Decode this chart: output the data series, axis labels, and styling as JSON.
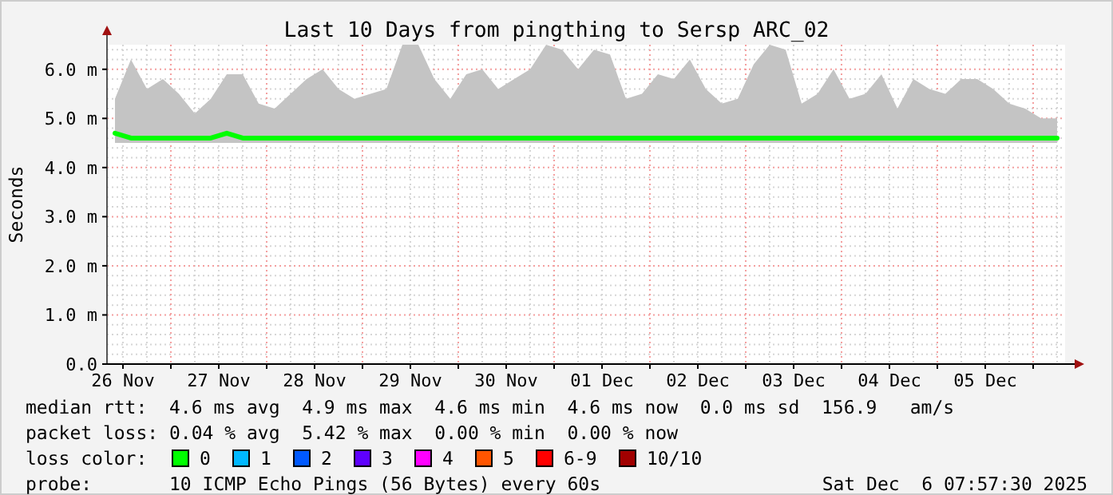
{
  "chart_data": {
    "type": "line",
    "title": "Last 10 Days from pingthing to Sersp ARC_02",
    "ylabel": "Seconds",
    "legend_title": "loss color:",
    "legend": "bottom",
    "grid": true,
    "line_style": "solid",
    "marker": "none",
    "xlim": [
      "2025-11-26T08:00",
      "2025-12-06T08:00"
    ],
    "xticks": [
      {
        "value": "2025-11-26T12:00",
        "label": "26 Nov"
      },
      {
        "value": "2025-11-27T00:00",
        "label": null
      },
      {
        "value": "2025-11-27T12:00",
        "label": "27 Nov"
      },
      {
        "value": "2025-11-28T00:00",
        "label": null
      },
      {
        "value": "2025-11-28T12:00",
        "label": "28 Nov"
      },
      {
        "value": "2025-11-29T00:00",
        "label": null
      },
      {
        "value": "2025-11-29T12:00",
        "label": "29 Nov"
      },
      {
        "value": "2025-11-30T00:00",
        "label": null
      },
      {
        "value": "2025-11-30T12:00",
        "label": "30 Nov"
      },
      {
        "value": "2025-12-01T00:00",
        "label": null
      },
      {
        "value": "2025-12-01T12:00",
        "label": "01 Dec"
      },
      {
        "value": "2025-12-02T00:00",
        "label": null
      },
      {
        "value": "2025-12-02T12:00",
        "label": "02 Dec"
      },
      {
        "value": "2025-12-03T00:00",
        "label": null
      },
      {
        "value": "2025-12-03T12:00",
        "label": "03 Dec"
      },
      {
        "value": "2025-12-04T00:00",
        "label": null
      },
      {
        "value": "2025-12-04T12:00",
        "label": "04 Dec"
      },
      {
        "value": "2025-12-05T00:00",
        "label": null
      },
      {
        "value": "2025-12-05T12:00",
        "label": "05 Dec"
      },
      {
        "value": "2025-12-06T00:00",
        "label": null
      }
    ],
    "ylim": [
      0,
      6.5
    ],
    "yticks": [
      {
        "value": 0,
        "label": "0.0"
      },
      {
        "value": 1,
        "label": "1.0 m"
      },
      {
        "value": 2,
        "label": "2.0 m"
      },
      {
        "value": 3,
        "label": "3.0 m"
      },
      {
        "value": 4,
        "label": "4.0 m"
      },
      {
        "value": 5,
        "label": "5.0 m"
      },
      {
        "value": 6,
        "label": "6.0 m"
      }
    ],
    "x": [
      "2025-11-26T10:00",
      "2025-11-26T14:00",
      "2025-11-26T18:00",
      "2025-11-26T22:00",
      "2025-11-27T02:00",
      "2025-11-27T06:00",
      "2025-11-27T10:00",
      "2025-11-27T14:00",
      "2025-11-27T18:00",
      "2025-11-27T22:00",
      "2025-11-28T02:00",
      "2025-11-28T06:00",
      "2025-11-28T10:00",
      "2025-11-28T14:00",
      "2025-11-28T18:00",
      "2025-11-28T22:00",
      "2025-11-29T02:00",
      "2025-11-29T06:00",
      "2025-11-29T10:00",
      "2025-11-29T14:00",
      "2025-11-29T18:00",
      "2025-11-29T22:00",
      "2025-11-30T02:00",
      "2025-11-30T06:00",
      "2025-11-30T10:00",
      "2025-11-30T14:00",
      "2025-11-30T18:00",
      "2025-11-30T22:00",
      "2025-12-01T02:00",
      "2025-12-01T06:00",
      "2025-12-01T10:00",
      "2025-12-01T14:00",
      "2025-12-01T18:00",
      "2025-12-01T22:00",
      "2025-12-02T02:00",
      "2025-12-02T06:00",
      "2025-12-02T10:00",
      "2025-12-02T14:00",
      "2025-12-02T18:00",
      "2025-12-02T22:00",
      "2025-12-03T02:00",
      "2025-12-03T06:00",
      "2025-12-03T10:00",
      "2025-12-03T14:00",
      "2025-12-03T18:00",
      "2025-12-03T22:00",
      "2025-12-04T02:00",
      "2025-12-04T06:00",
      "2025-12-04T10:00",
      "2025-12-04T14:00",
      "2025-12-04T18:00",
      "2025-12-04T22:00",
      "2025-12-05T02:00",
      "2025-12-05T06:00",
      "2025-12-05T10:00",
      "2025-12-05T14:00",
      "2025-12-05T18:00",
      "2025-12-05T22:00",
      "2025-12-06T02:00",
      "2025-12-06T06:00"
    ],
    "series": [
      {
        "name": "0",
        "color": "#00ff00",
        "values": [
          4.7,
          4.6,
          4.6,
          4.6,
          4.6,
          4.6,
          4.6,
          4.7,
          4.6,
          4.6,
          4.6,
          4.6,
          4.6,
          4.6,
          4.6,
          4.6,
          4.6,
          4.6,
          4.6,
          4.6,
          4.6,
          4.6,
          4.6,
          4.6,
          4.6,
          4.6,
          4.6,
          4.6,
          4.6,
          4.6,
          4.6,
          4.6,
          4.6,
          4.6,
          4.6,
          4.6,
          4.6,
          4.6,
          4.6,
          4.6,
          4.6,
          4.6,
          4.6,
          4.6,
          4.6,
          4.6,
          4.6,
          4.6,
          4.6,
          4.6,
          4.6,
          4.6,
          4.6,
          4.6,
          4.6,
          4.6,
          4.6,
          4.6,
          4.6,
          4.6
        ],
        "lower": [
          4.5,
          4.5,
          4.5,
          4.5,
          4.5,
          4.5,
          4.5,
          4.5,
          4.5,
          4.5,
          4.5,
          4.5,
          4.5,
          4.5,
          4.5,
          4.5,
          4.5,
          4.5,
          4.5,
          4.5,
          4.5,
          4.5,
          4.5,
          4.5,
          4.5,
          4.5,
          4.5,
          4.5,
          4.5,
          4.5,
          4.5,
          4.5,
          4.5,
          4.5,
          4.5,
          4.5,
          4.5,
          4.5,
          4.5,
          4.5,
          4.5,
          4.5,
          4.5,
          4.5,
          4.5,
          4.5,
          4.5,
          4.5,
          4.5,
          4.5,
          4.5,
          4.5,
          4.5,
          4.5,
          4.5,
          4.5,
          4.5,
          4.5,
          4.5,
          4.5
        ],
        "upper": [
          5.4,
          6.2,
          5.6,
          5.8,
          5.5,
          5.1,
          5.4,
          5.9,
          5.9,
          5.3,
          5.2,
          5.5,
          5.8,
          6.0,
          5.6,
          5.4,
          5.5,
          5.6,
          6.5,
          6.5,
          5.8,
          5.4,
          5.9,
          6.0,
          5.6,
          5.8,
          6.0,
          6.5,
          6.4,
          6.0,
          6.4,
          6.3,
          5.4,
          5.5,
          5.9,
          5.8,
          6.2,
          5.6,
          5.3,
          5.4,
          6.1,
          6.5,
          6.4,
          5.3,
          5.5,
          6.0,
          5.4,
          5.5,
          5.9,
          5.2,
          5.8,
          5.6,
          5.5,
          5.8,
          5.8,
          5.6,
          5.3,
          5.2,
          5.0,
          5.0
        ]
      },
      {
        "name": "1",
        "color": "#00b8ff",
        "values": [
          null,
          null,
          null,
          null,
          null,
          null,
          null,
          null,
          null,
          null,
          null,
          null,
          null,
          null,
          null,
          null,
          null,
          null,
          null,
          null,
          null,
          null,
          null,
          null,
          null,
          null,
          null,
          null,
          null,
          null,
          null,
          null,
          null,
          null,
          null,
          null,
          null,
          null,
          null,
          null,
          null,
          null,
          null,
          null,
          null,
          null,
          null,
          null,
          null,
          null,
          null,
          null,
          null,
          null,
          null,
          null,
          null,
          null,
          null,
          null
        ]
      },
      {
        "name": "2",
        "color": "#0059ff",
        "values": [
          null,
          null,
          null,
          null,
          null,
          null,
          null,
          null,
          null,
          null,
          null,
          null,
          null,
          null,
          null,
          null,
          null,
          null,
          null,
          null,
          null,
          null,
          null,
          null,
          null,
          null,
          null,
          null,
          null,
          null,
          null,
          null,
          null,
          null,
          null,
          null,
          null,
          null,
          null,
          null,
          null,
          null,
          null,
          null,
          null,
          null,
          null,
          null,
          null,
          null,
          null,
          null,
          null,
          null,
          null,
          null,
          null,
          null,
          null,
          null
        ]
      },
      {
        "name": "3",
        "color": "#5e00ff",
        "values": [
          null,
          null,
          null,
          null,
          null,
          null,
          null,
          null,
          null,
          null,
          null,
          null,
          null,
          null,
          null,
          null,
          null,
          null,
          null,
          null,
          null,
          null,
          null,
          null,
          null,
          null,
          null,
          null,
          null,
          null,
          null,
          null,
          null,
          null,
          null,
          null,
          null,
          null,
          null,
          null,
          null,
          null,
          null,
          null,
          null,
          null,
          null,
          null,
          null,
          null,
          null,
          null,
          null,
          null,
          null,
          null,
          null,
          null,
          null,
          null
        ]
      },
      {
        "name": "4",
        "color": "#ff00ff",
        "values": [
          null,
          null,
          null,
          null,
          null,
          null,
          null,
          null,
          null,
          null,
          null,
          null,
          null,
          null,
          null,
          null,
          null,
          null,
          null,
          null,
          null,
          null,
          null,
          null,
          null,
          null,
          null,
          null,
          null,
          null,
          null,
          null,
          null,
          null,
          null,
          null,
          null,
          null,
          null,
          null,
          null,
          null,
          null,
          null,
          null,
          null,
          null,
          null,
          null,
          null,
          null,
          null,
          null,
          null,
          null,
          null,
          null,
          null,
          null,
          null
        ]
      },
      {
        "name": "5",
        "color": "#ff5500",
        "values": [
          null,
          null,
          null,
          null,
          null,
          null,
          null,
          null,
          null,
          null,
          null,
          null,
          null,
          null,
          null,
          null,
          null,
          null,
          null,
          null,
          null,
          null,
          null,
          null,
          null,
          null,
          null,
          null,
          null,
          null,
          null,
          null,
          null,
          null,
          null,
          null,
          null,
          null,
          null,
          null,
          null,
          null,
          null,
          null,
          null,
          null,
          null,
          null,
          null,
          null,
          null,
          null,
          null,
          null,
          null,
          null,
          null,
          null,
          null,
          null
        ]
      },
      {
        "name": "6-9",
        "color": "#ff0000",
        "values": [
          null,
          null,
          null,
          null,
          null,
          null,
          null,
          null,
          null,
          null,
          null,
          null,
          null,
          null,
          null,
          null,
          null,
          null,
          null,
          null,
          null,
          null,
          null,
          null,
          null,
          null,
          null,
          null,
          null,
          null,
          null,
          null,
          null,
          null,
          null,
          null,
          null,
          null,
          null,
          null,
          null,
          null,
          null,
          null,
          null,
          null,
          null,
          null,
          null,
          null,
          null,
          null,
          null,
          null,
          null,
          null,
          null,
          null,
          null,
          null
        ]
      },
      {
        "name": "10/10",
        "color": "#a10000",
        "values": [
          null,
          null,
          null,
          null,
          null,
          null,
          null,
          null,
          null,
          null,
          null,
          null,
          null,
          null,
          null,
          null,
          null,
          null,
          null,
          null,
          null,
          null,
          null,
          null,
          null,
          null,
          null,
          null,
          null,
          null,
          null,
          null,
          null,
          null,
          null,
          null,
          null,
          null,
          null,
          null,
          null,
          null,
          null,
          null,
          null,
          null,
          null,
          null,
          null,
          null,
          null,
          null,
          null,
          null,
          null,
          null,
          null,
          null,
          null,
          null
        ]
      }
    ],
    "annotations": [
      "median rtt:  4.6 ms avg  4.9 ms max  4.6 ms min  4.6 ms now  0.0 ms sd  156.9   am/s",
      "packet loss: 0.04 % avg  5.42 % max  0.00 % min  0.00 % now",
      "probe:       10 ICMP Echo Pings (56 Bytes) every 60s",
      "Sat Dec  6 07:57:30 2025"
    ]
  }
}
